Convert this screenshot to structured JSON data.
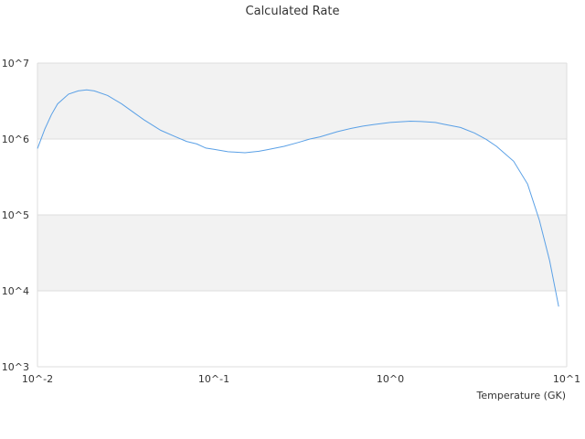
{
  "chart_data": {
    "type": "line",
    "title": "Calculated Rate",
    "xlabel": "Temperature (GK)",
    "ylabel": "",
    "x_scale": "log",
    "y_scale": "log",
    "xlim": [
      0.01,
      10
    ],
    "ylim": [
      1000,
      10000000
    ],
    "x_ticks": [
      "10^-2",
      "10^-1",
      "10^0",
      "10^1"
    ],
    "y_ticks": [
      "10^3",
      "10^4",
      "10^5",
      "10^6",
      "10^7"
    ],
    "grid": "horizontal bands",
    "legend": "none",
    "colors": {
      "line": "#5aa0e6",
      "band": "#f2f2f2",
      "grid": "#dddddd",
      "text": "#333333"
    },
    "series": [
      {
        "x": [
          0.01,
          0.011,
          0.012,
          0.013,
          0.015,
          0.017,
          0.019,
          0.021,
          0.025,
          0.03,
          0.035,
          0.04,
          0.05,
          0.06,
          0.07,
          0.08,
          0.09,
          0.1,
          0.12,
          0.15,
          0.18,
          0.2,
          0.25,
          0.3,
          0.35,
          0.4,
          0.5,
          0.6,
          0.7,
          0.8,
          1.0,
          1.3,
          1.5,
          1.8,
          2.0,
          2.5,
          3.0,
          3.5,
          4.0,
          5.0,
          6.0,
          7.0,
          8.0,
          9.0
        ],
        "y": [
          750000,
          1350000,
          2100000,
          2900000,
          3900000,
          4300000,
          4450000,
          4300000,
          3750000,
          2900000,
          2250000,
          1800000,
          1300000,
          1080000,
          930000,
          860000,
          760000,
          730000,
          680000,
          660000,
          690000,
          720000,
          800000,
          900000,
          1000000,
          1070000,
          1250000,
          1380000,
          1480000,
          1550000,
          1650000,
          1720000,
          1700000,
          1650000,
          1570000,
          1420000,
          1200000,
          990000,
          800000,
          510000,
          255000,
          85000,
          25000,
          6200
        ]
      }
    ]
  }
}
